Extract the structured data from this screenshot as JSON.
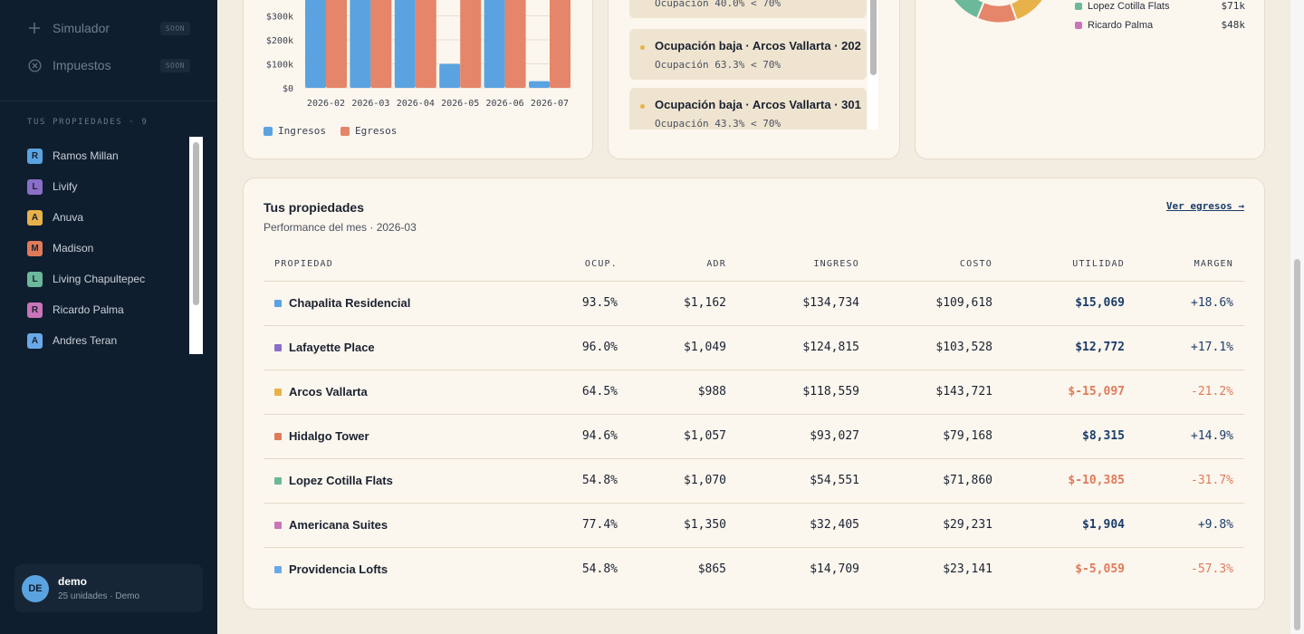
{
  "sidebar": {
    "nav": [
      {
        "label": "Simulador",
        "badge": "SOON",
        "icon": "plus-icon"
      },
      {
        "label": "Impuestos",
        "badge": "SOON",
        "icon": "circle-x-icon"
      }
    ],
    "section_title": "TUS PROPIEDADES · 9",
    "properties": [
      {
        "initial": "R",
        "name": "Ramos Millan",
        "color": "#5ba3e0"
      },
      {
        "initial": "L",
        "name": "Livify",
        "color": "#8a6fc9"
      },
      {
        "initial": "A",
        "name": "Anuva",
        "color": "#e8b24a"
      },
      {
        "initial": "M",
        "name": "Madison",
        "color": "#e07b5a"
      },
      {
        "initial": "L",
        "name": "Living Chapultepec",
        "color": "#6bb89a"
      },
      {
        "initial": "R",
        "name": "Ricardo Palma",
        "color": "#c975b8"
      },
      {
        "initial": "A",
        "name": "Andres Teran",
        "color": "#6aa9e8"
      }
    ],
    "user": {
      "initials": "DE",
      "name": "demo",
      "sub": "25 unidades · Demo"
    }
  },
  "chart_data": {
    "type": "bar",
    "categories": [
      "2026-02",
      "2026-03",
      "2026-04",
      "2026-05",
      "2026-06",
      "2026-07"
    ],
    "series": [
      {
        "name": "Ingresos",
        "color": "#5ba3e0",
        "values": [
          420000,
          420000,
          420000,
          100000,
          420000,
          28000
        ]
      },
      {
        "name": "Egresos",
        "color": "#e5856a",
        "values": [
          420000,
          420000,
          420000,
          420000,
          420000,
          420000
        ]
      }
    ],
    "yticks": [
      {
        "v": 0,
        "l": "$0"
      },
      {
        "v": 100000,
        "l": "$100k"
      },
      {
        "v": 200000,
        "l": "$200k"
      },
      {
        "v": 300000,
        "l": "$300k"
      }
    ],
    "ylim": [
      0,
      400000
    ],
    "grid": true,
    "legend": "bottom-left"
  },
  "alerts": [
    {
      "title": "",
      "sub": "Ocupación 40.0% < 70%"
    },
    {
      "title": "Ocupación baja · Arcos Vallarta · 202",
      "sub": "Ocupación 63.3% < 70%"
    },
    {
      "title": "Ocupación baja · Arcos Vallarta · 301",
      "sub": "Ocupación 43.3% < 70%"
    }
  ],
  "donut": {
    "legend": [
      {
        "name": "Lopez Cotilla Flats",
        "value": "$71k",
        "color": "#6bb89a"
      },
      {
        "name": "Ricardo Palma",
        "value": "$48k",
        "color": "#c975b8"
      }
    ]
  },
  "table": {
    "title": "Tus propiedades",
    "subtitle": "Performance del mes · 2026-03",
    "link": "Ver egresos →",
    "headers": [
      "PROPIEDAD",
      "OCUP.",
      "ADR",
      "INGRESO",
      "COSTO",
      "UTILIDAD",
      "MARGEN"
    ],
    "rows": [
      {
        "color": "#5ba3e0",
        "name": "Chapalita Residencial",
        "ocup": "93.5%",
        "adr": "$1,162",
        "ingreso": "$134,734",
        "costo": "$109,618",
        "utilidad": "$15,069",
        "margen": "+18.6%",
        "neg": false
      },
      {
        "color": "#8a6fc9",
        "name": "Lafayette Place",
        "ocup": "96.0%",
        "adr": "$1,049",
        "ingreso": "$124,815",
        "costo": "$103,528",
        "utilidad": "$12,772",
        "margen": "+17.1%",
        "neg": false
      },
      {
        "color": "#e8b24a",
        "name": "Arcos Vallarta",
        "ocup": "64.5%",
        "adr": "$988",
        "ingreso": "$118,559",
        "costo": "$143,721",
        "utilidad": "$-15,097",
        "margen": "-21.2%",
        "neg": true
      },
      {
        "color": "#e07b5a",
        "name": "Hidalgo Tower",
        "ocup": "94.6%",
        "adr": "$1,057",
        "ingreso": "$93,027",
        "costo": "$79,168",
        "utilidad": "$8,315",
        "margen": "+14.9%",
        "neg": false
      },
      {
        "color": "#6bb89a",
        "name": "Lopez Cotilla Flats",
        "ocup": "54.8%",
        "adr": "$1,070",
        "ingreso": "$54,551",
        "costo": "$71,860",
        "utilidad": "$-10,385",
        "margen": "-31.7%",
        "neg": true
      },
      {
        "color": "#c975b8",
        "name": "Americana Suites",
        "ocup": "77.4%",
        "adr": "$1,350",
        "ingreso": "$32,405",
        "costo": "$29,231",
        "utilidad": "$1,904",
        "margen": "+9.8%",
        "neg": false
      },
      {
        "color": "#6aa9e8",
        "name": "Providencia Lofts",
        "ocup": "54.8%",
        "adr": "$865",
        "ingreso": "$14,709",
        "costo": "$23,141",
        "utilidad": "$-5,059",
        "margen": "-57.3%",
        "neg": true
      }
    ]
  }
}
